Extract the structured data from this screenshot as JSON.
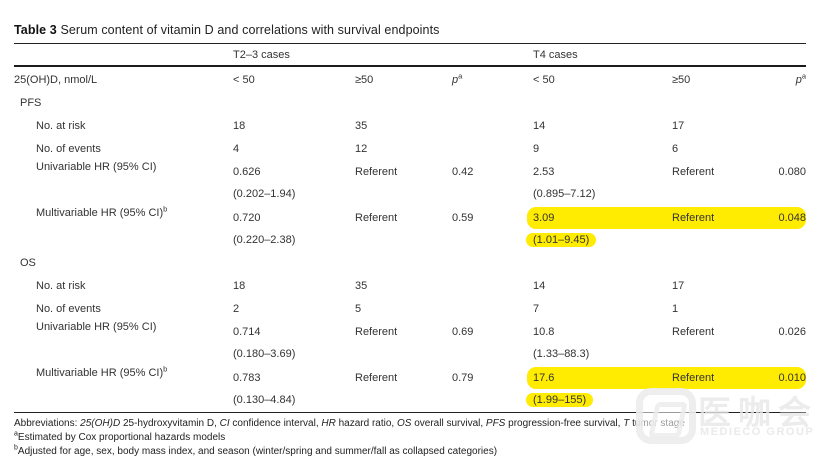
{
  "title": {
    "label": "Table 3",
    "text": "Serum content of vitamin D and correlations with survival endpoints"
  },
  "header": {
    "group1": "T2–3 cases",
    "group2": "T4 cases",
    "col_label": "25(OH)D, nmol/L",
    "lt50": "< 50",
    "ge50": "≥50",
    "p": "p",
    "p_sup": "a"
  },
  "highlight_color": "#ffec00",
  "sections": [
    {
      "name": "PFS",
      "rows": [
        {
          "label": "No. at risk",
          "cells": [
            "18",
            "35",
            "",
            "14",
            "17",
            ""
          ]
        },
        {
          "label": "No. of events",
          "cells": [
            "4",
            "12",
            "",
            "9",
            "6",
            ""
          ]
        },
        {
          "label": "Univariable HR (95% CI)",
          "sup": "",
          "cells": [
            "0.626",
            "Referent",
            "0.42",
            "2.53",
            "Referent",
            "0.080"
          ],
          "ci_left": "(0.202–1.94)",
          "ci_right": "(0.895–7.12)",
          "highlight": false
        },
        {
          "label": "Multivariable HR (95% CI)",
          "sup": "b",
          "cells": [
            "0.720",
            "Referent",
            "0.59",
            "3.09",
            "Referent",
            "0.048"
          ],
          "ci_left": "(0.220–2.38)",
          "ci_right": "(1.01–9.45)",
          "highlight": true
        }
      ]
    },
    {
      "name": "OS",
      "rows": [
        {
          "label": "No. at risk",
          "cells": [
            "18",
            "35",
            "",
            "14",
            "17",
            ""
          ]
        },
        {
          "label": "No. of events",
          "cells": [
            "2",
            "5",
            "",
            "7",
            "1",
            ""
          ]
        },
        {
          "label": "Univariable HR (95% CI)",
          "sup": "",
          "cells": [
            "0.714",
            "Referent",
            "0.69",
            "10.8",
            "Referent",
            "0.026"
          ],
          "ci_left": "(0.180–3.69)",
          "ci_right": "(1.33–88.3)",
          "highlight": false
        },
        {
          "label": "Multivariable HR (95% CI)",
          "sup": "b",
          "cells": [
            "0.783",
            "Referent",
            "0.79",
            "17.6",
            "Referent",
            "0.010"
          ],
          "ci_left": "(0.130–4.84)",
          "ci_right": "(1.99–155)",
          "highlight": true
        }
      ]
    }
  ],
  "footnotes": {
    "abbr": {
      "prefix": "Abbreviations: ",
      "segs": [
        {
          "i": "25(OH)D",
          "r": " 25-hydroxyvitamin D, "
        },
        {
          "i": "CI",
          "r": " confidence interval, "
        },
        {
          "i": "HR",
          "r": " hazard ratio, "
        },
        {
          "i": "OS",
          "r": " overall survival, "
        },
        {
          "i": "PFS",
          "r": " progression-free survival, "
        },
        {
          "i": "T",
          "r": " tumor stage"
        }
      ]
    },
    "a": {
      "sup": "a",
      "text": "Estimated by Cox proportional hazards models"
    },
    "b": {
      "sup": "b",
      "text": "Adjusted for age, sex, body mass index, and season (winter/spring and summer/fall as collapsed categories)"
    }
  },
  "watermark": {
    "cn": "医咖会",
    "en": "MEDIECO GROUP"
  }
}
